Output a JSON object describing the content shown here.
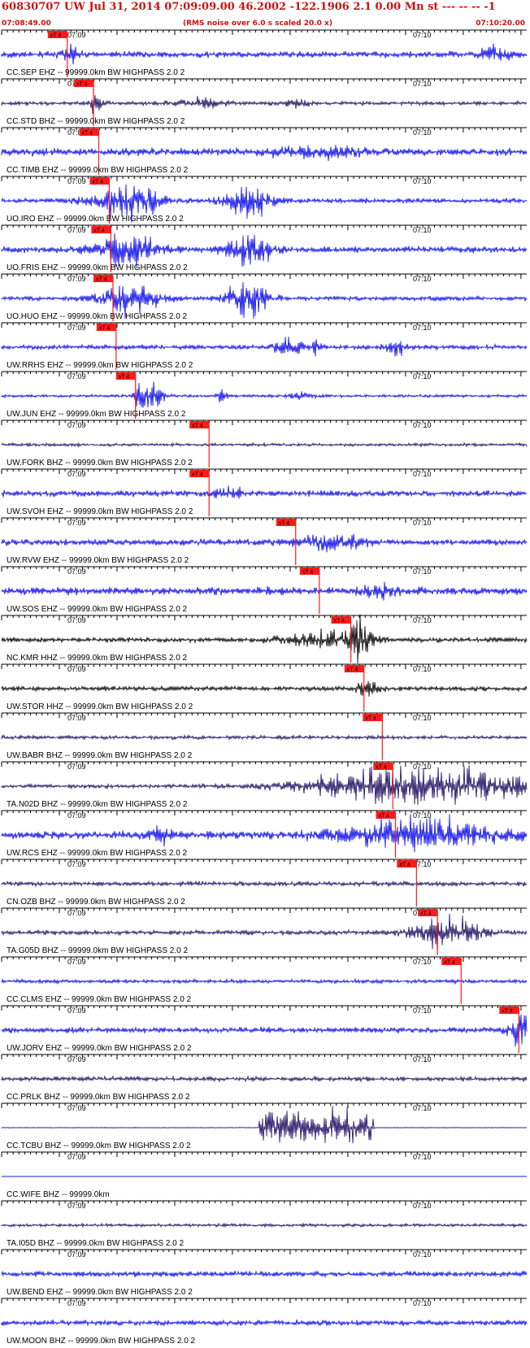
{
  "header": {
    "title": "60830707 UW Jul 31, 2014 07:09:09.00   46.2002 -122.1906  2.1 0.00 Mn st --- -- --  -1",
    "start_time": "07:08:49.00",
    "note": "(RMS noise over 6.0 s scaled 20.0 x)",
    "end_time": "07:10:20.00"
  },
  "tick_labels": {
    "left": "07:09",
    "right": "07:10"
  },
  "pick_label": "xT 4",
  "colors": {
    "blue": "#1a1aee",
    "navy": "#2a1a6a",
    "black": "#111111",
    "pick": "#ff1a1a",
    "header": "#cc1111"
  },
  "traces": [
    {
      "label": "CC.SEP EHZ -- 99999.0km BW  HIGHPASS  2.0  2",
      "color": "blue",
      "amp": 4,
      "pick": 0.125,
      "seed": 11,
      "bursts": [
        [
          0.13,
          0.015,
          12
        ],
        [
          0.94,
          0.03,
          10
        ]
      ]
    },
    {
      "label": "CC.STD BHZ -- 99999.0km BW  HIGHPASS  2.0  2",
      "color": "navy",
      "amp": 2.5,
      "pick": 0.175,
      "seed": 23,
      "bursts": [
        [
          0.18,
          0.015,
          12
        ],
        [
          0.38,
          0.05,
          6
        ],
        [
          0.56,
          0.02,
          6
        ]
      ]
    },
    {
      "label": "CC.TIMB EHZ -- 99999.0km BW  HIGHPASS  2.0  2",
      "color": "blue",
      "amp": 5,
      "pick": 0.185,
      "seed": 37,
      "bursts": [
        [
          0.6,
          0.08,
          8
        ]
      ]
    },
    {
      "label": "UO.IRO EHZ -- 99999.0km BW  HIGHPASS  2.0  2",
      "color": "blue",
      "amp": 3,
      "pick": 0.205,
      "seed": 41,
      "bursts": [
        [
          0.24,
          0.06,
          26
        ],
        [
          0.47,
          0.04,
          26
        ]
      ]
    },
    {
      "label": "UO.FRIS EHZ -- 99999.0km BW  HIGHPASS  2.0  2",
      "color": "blue",
      "amp": 4,
      "pick": 0.208,
      "seed": 53,
      "bursts": [
        [
          0.24,
          0.06,
          24
        ],
        [
          0.47,
          0.04,
          26
        ]
      ]
    },
    {
      "label": "UO.HUO EHZ -- 99999.0km BW  HIGHPASS  2.0  2",
      "color": "blue",
      "amp": 3,
      "pick": 0.212,
      "seed": 61,
      "bursts": [
        [
          0.24,
          0.06,
          20
        ],
        [
          0.47,
          0.04,
          24
        ]
      ]
    },
    {
      "label": "UW.RRHS EHZ -- 99999.0km BW  HIGHPASS  2.0  2",
      "color": "blue",
      "amp": 3,
      "pick": 0.218,
      "seed": 71,
      "bursts": [
        [
          0.55,
          0.03,
          12
        ],
        [
          0.6,
          0.008,
          18
        ],
        [
          0.75,
          0.02,
          12
        ]
      ]
    },
    {
      "label": "UW.JUN EHZ -- 99999.0km BW  HIGHPASS  2.0  2",
      "color": "blue",
      "amp": 1.8,
      "pick": 0.255,
      "seed": 83,
      "bursts": [
        [
          0.28,
          0.025,
          24
        ],
        [
          0.42,
          0.008,
          14
        ],
        [
          0.57,
          0.025,
          6
        ]
      ]
    },
    {
      "label": "UW.FORK BHZ -- 99999.0km BW  HIGHPASS  2.0  2",
      "color": "navy",
      "amp": 2,
      "pick": 0.395,
      "seed": 97,
      "bursts": []
    },
    {
      "label": "UW.SVOH EHZ -- 99999.0km BW  HIGHPASS  2.0  2",
      "color": "blue",
      "amp": 4,
      "pick": 0.395,
      "seed": 101,
      "bursts": [
        [
          0.43,
          0.03,
          9
        ]
      ]
    },
    {
      "label": "UW.RVW EHZ -- 99999.0km BW  HIGHPASS  2.0  2",
      "color": "blue",
      "amp": 4,
      "pick": 0.56,
      "seed": 113,
      "bursts": [
        [
          0.63,
          0.06,
          9
        ]
      ]
    },
    {
      "label": "UW.SOS EHZ -- 99999.0km BW  HIGHPASS  2.0  2",
      "color": "blue",
      "amp": 5,
      "pick": 0.605,
      "seed": 127,
      "bursts": [
        [
          0.72,
          0.03,
          9
        ]
      ]
    },
    {
      "label": "NC.KMR HHZ -- 99999.0km BW  HIGHPASS  2.0  2",
      "color": "black",
      "amp": 3,
      "pick": 0.665,
      "seed": 131,
      "bursts": [
        [
          0.62,
          0.08,
          12
        ],
        [
          0.68,
          0.02,
          26
        ]
      ]
    },
    {
      "label": "UW.STOR HHZ -- 99999.0km BW  HIGHPASS  2.0  2",
      "color": "black",
      "amp": 3,
      "pick": 0.69,
      "seed": 137,
      "bursts": [
        [
          0.7,
          0.02,
          16
        ]
      ]
    },
    {
      "label": "UW.BABR BHZ -- 99999.0km BW  HIGHPASS  2.0  2",
      "color": "navy",
      "amp": 2.5,
      "pick": 0.725,
      "seed": 149,
      "bursts": []
    },
    {
      "label": "TA.N02D BHZ -- 99999.0km BW  HIGHPASS  2.0  2",
      "color": "navy",
      "amp": 2.5,
      "pick": 0.745,
      "seed": 151,
      "bursts": [
        [
          0.8,
          0.2,
          28
        ]
      ]
    },
    {
      "label": "UW.RCS EHZ -- 99999.0km BW  HIGHPASS  2.0  2",
      "color": "blue",
      "amp": 5,
      "pick": 0.75,
      "seed": 163,
      "bursts": [
        [
          0.3,
          0.02,
          14
        ],
        [
          0.8,
          0.15,
          20
        ]
      ]
    },
    {
      "label": "CN.OZB BHZ -- 99999.0km BW  HIGHPASS  2.0  2",
      "color": "navy",
      "amp": 3,
      "pick": 0.79,
      "seed": 173,
      "bursts": []
    },
    {
      "label": "TA.G05D BHZ -- 99999.0km BW  HIGHPASS  2.0  2",
      "color": "navy",
      "amp": 3,
      "pick": 0.83,
      "seed": 181,
      "bursts": [
        [
          0.85,
          0.06,
          22
        ]
      ]
    },
    {
      "label": "CC.CLMS EHZ -- 99999.0km BW  HIGHPASS  2.0  2",
      "color": "blue",
      "amp": 2.5,
      "pick": 0.875,
      "seed": 191,
      "bursts": []
    },
    {
      "label": "UW.JORV EHZ -- 99999.0km BW  HIGHPASS  2.0  2",
      "color": "blue",
      "amp": 3.5,
      "pick": 0.985,
      "seed": 197,
      "bursts": [
        [
          0.985,
          0.02,
          28
        ]
      ]
    },
    {
      "label": "CC.PRLK BHZ -- 99999.0km BW  HIGHPASS  2.0  2",
      "color": "navy",
      "amp": 3,
      "pick": null,
      "seed": 211,
      "bursts": []
    },
    {
      "label": "CC.TCBU BHZ -- 99999.0km BW  HIGHPASS  2.0  2",
      "color": "navy",
      "amp": 0.4,
      "pick": null,
      "seed": 223,
      "bursts": [
        [
          0.6,
          0.11,
          24,
          "box"
        ]
      ]
    },
    {
      "label": "CC.WIFE BHZ -- 99999.0km",
      "color": "blue",
      "amp": 0,
      "pick": null,
      "seed": 227,
      "bursts": []
    },
    {
      "label": "TA.I05D BHZ -- 99999.0km BW  HIGHPASS  2.0  2",
      "color": "navy",
      "amp": 2,
      "pick": null,
      "seed": 229,
      "bursts": []
    },
    {
      "label": "UW.BEND EHZ -- 99999.0km BW  HIGHPASS  2.0  2",
      "color": "blue",
      "amp": 3.5,
      "pick": null,
      "seed": 233,
      "bursts": []
    },
    {
      "label": "UW.MOON BHZ -- 99999.0km BW  HIGHPASS  2.0  2",
      "color": "blue",
      "amp": 3.5,
      "pick": null,
      "seed": 239,
      "bursts": []
    }
  ]
}
